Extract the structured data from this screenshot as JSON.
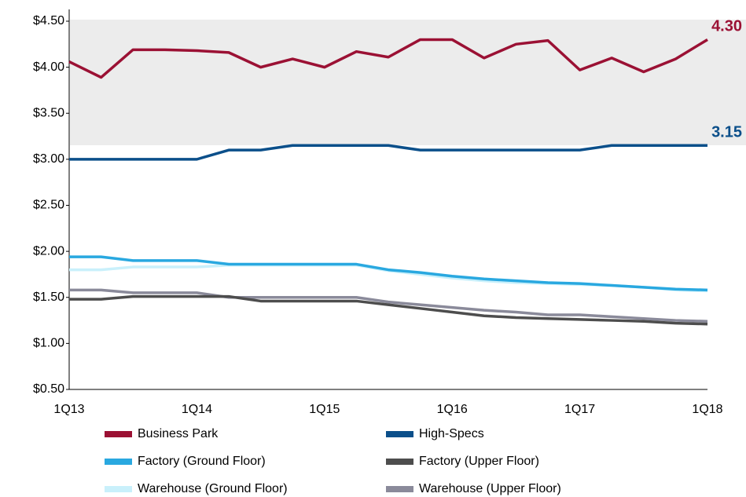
{
  "chart_data": {
    "type": "line",
    "categories": [
      "1Q13",
      null,
      null,
      null,
      "1Q14",
      null,
      null,
      null,
      "1Q15",
      null,
      null,
      null,
      "1Q16",
      null,
      null,
      null,
      "1Q17",
      null,
      null,
      null,
      "1Q18"
    ],
    "ylim": [
      0.5,
      4.5
    ],
    "yticks": [
      {
        "value": 0.5,
        "label": "$0.50"
      },
      {
        "value": 1.0,
        "label": "$1.00"
      },
      {
        "value": 1.5,
        "label": "$1.50"
      },
      {
        "value": 2.0,
        "label": "$2.00"
      },
      {
        "value": 2.5,
        "label": "$2.50"
      },
      {
        "value": 3.0,
        "label": "$3.00"
      },
      {
        "value": 3.5,
        "label": "$3.50"
      },
      {
        "value": 4.0,
        "label": "$4.00"
      },
      {
        "value": 4.5,
        "label": "$4.50"
      }
    ],
    "grid": false,
    "series": [
      {
        "name": "Business Park",
        "color": "#9b1134",
        "values": [
          4.06,
          3.89,
          4.19,
          4.19,
          4.18,
          4.16,
          4.0,
          4.09,
          4.0,
          4.17,
          4.11,
          4.3,
          4.3,
          4.1,
          4.25,
          4.29,
          3.97,
          4.1,
          3.95,
          4.09,
          4.3
        ],
        "value_labels": [
          null,
          null,
          null,
          null,
          null,
          null,
          null,
          null,
          null,
          null,
          null,
          null,
          null,
          null,
          null,
          null,
          null,
          null,
          null,
          null,
          "4.30"
        ]
      },
      {
        "name": "High-Specs",
        "color": "#0b4f8a",
        "values": [
          3.0,
          3.0,
          3.0,
          3.0,
          3.0,
          3.1,
          3.1,
          3.15,
          3.15,
          3.15,
          3.15,
          3.1,
          3.1,
          3.1,
          3.1,
          3.1,
          3.1,
          3.15,
          3.15,
          3.15,
          3.15
        ],
        "value_labels": [
          null,
          null,
          null,
          null,
          null,
          null,
          null,
          null,
          null,
          null,
          null,
          null,
          null,
          null,
          null,
          null,
          null,
          null,
          null,
          null,
          "3.15"
        ]
      },
      {
        "name": "Factory (Ground Floor)",
        "color": "#29a8e0",
        "values": [
          1.94,
          1.94,
          1.9,
          1.9,
          1.9,
          1.86,
          1.86,
          1.86,
          1.86,
          1.86,
          1.8,
          1.77,
          1.73,
          1.7,
          1.68,
          1.66,
          1.65,
          1.63,
          1.61,
          1.59,
          1.58
        ]
      },
      {
        "name": "Factory (Upper Floor)",
        "color": "#4d4d4d",
        "values": [
          1.48,
          1.48,
          1.51,
          1.51,
          1.51,
          1.51,
          1.46,
          1.46,
          1.46,
          1.46,
          1.42,
          1.38,
          1.34,
          1.3,
          1.28,
          1.27,
          1.26,
          1.25,
          1.24,
          1.22,
          1.21
        ]
      },
      {
        "name": "Warehouse (Ground Floor)",
        "color": "#c9f0fb",
        "values": [
          1.8,
          1.8,
          1.83,
          1.83,
          1.83,
          1.85,
          1.85,
          1.85,
          1.85,
          1.85,
          1.79,
          1.75,
          1.71,
          1.68,
          1.66,
          1.65,
          1.64,
          1.63,
          1.61,
          1.58,
          1.57
        ]
      },
      {
        "name": "Warehouse (Upper Floor)",
        "color": "#8a8a9a",
        "values": [
          1.58,
          1.58,
          1.55,
          1.55,
          1.55,
          1.5,
          1.5,
          1.5,
          1.5,
          1.5,
          1.45,
          1.42,
          1.39,
          1.36,
          1.34,
          1.31,
          1.31,
          1.29,
          1.27,
          1.25,
          1.24
        ]
      }
    ]
  }
}
